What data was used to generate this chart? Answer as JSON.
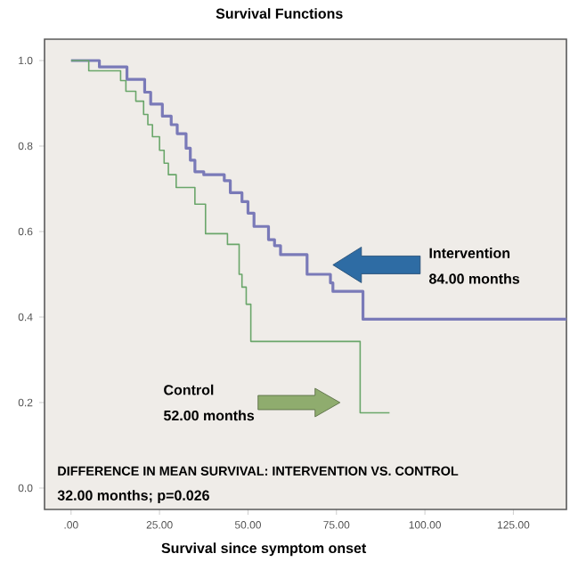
{
  "chart_data": {
    "type": "step",
    "title": "Survival Functions",
    "xlabel": "Survival since symptom onset",
    "series": [
      {
        "color": "#7a7ab8",
        "x": [
          0,
          8,
          15.8,
          20.8,
          22.5,
          25.8,
          28.3,
          30,
          32.5,
          33.7,
          35,
          37.5,
          43.3,
          45,
          48.3,
          50,
          51.7,
          55.8,
          57.5,
          59.2,
          66.7,
          73.3,
          74,
          82.5,
          140
        ],
        "values": [
          1.0,
          0.985,
          0.956,
          0.926,
          0.898,
          0.87,
          0.85,
          0.829,
          0.795,
          0.767,
          0.74,
          0.733,
          0.719,
          0.691,
          0.67,
          0.643,
          0.612,
          0.581,
          0.567,
          0.546,
          0.5,
          0.48,
          0.46,
          0.395,
          0.395
        ]
      },
      {
        "color": "#6aa66a",
        "x": [
          0,
          5,
          14,
          15.5,
          18.3,
          20.5,
          21.7,
          23,
          25,
          26.3,
          27.5,
          29.7,
          35,
          38,
          44.2,
          47.5,
          48.3,
          49.5,
          50.8,
          81.7,
          90
        ],
        "values": [
          1.0,
          0.976,
          0.953,
          0.928,
          0.905,
          0.874,
          0.85,
          0.822,
          0.79,
          0.76,
          0.733,
          0.703,
          0.664,
          0.595,
          0.57,
          0.5,
          0.47,
          0.43,
          0.343,
          0.176,
          0.176
        ]
      }
    ],
    "xlim": [
      -7.5,
      140
    ],
    "ylim": [
      -0.05,
      1.05
    ],
    "xticks": [
      {
        "value": 0,
        "label": ".00"
      },
      {
        "value": 25,
        "label": "25.00"
      },
      {
        "value": 50,
        "label": "50.00"
      },
      {
        "value": 75,
        "label": "75.00"
      },
      {
        "value": 100,
        "label": "100.00"
      },
      {
        "value": 125,
        "label": "125.00"
      }
    ],
    "yticks": [
      {
        "value": 0,
        "label": "0.0"
      },
      {
        "value": 0.2,
        "label": "0.2"
      },
      {
        "value": 0.4,
        "label": "0.4"
      },
      {
        "value": 0.6,
        "label": "0.6"
      },
      {
        "value": 0.8,
        "label": "0.8"
      },
      {
        "value": 1.0,
        "label": "1.0"
      }
    ],
    "grid": false,
    "annotations": [
      "Intervention",
      "84.00 months",
      "Control",
      "52.00 months",
      "DIFFERENCE IN MEAN SURVIVAL: INTERVENTION VS. CONTROL",
      "32.00 months; p=0.026"
    ]
  }
}
